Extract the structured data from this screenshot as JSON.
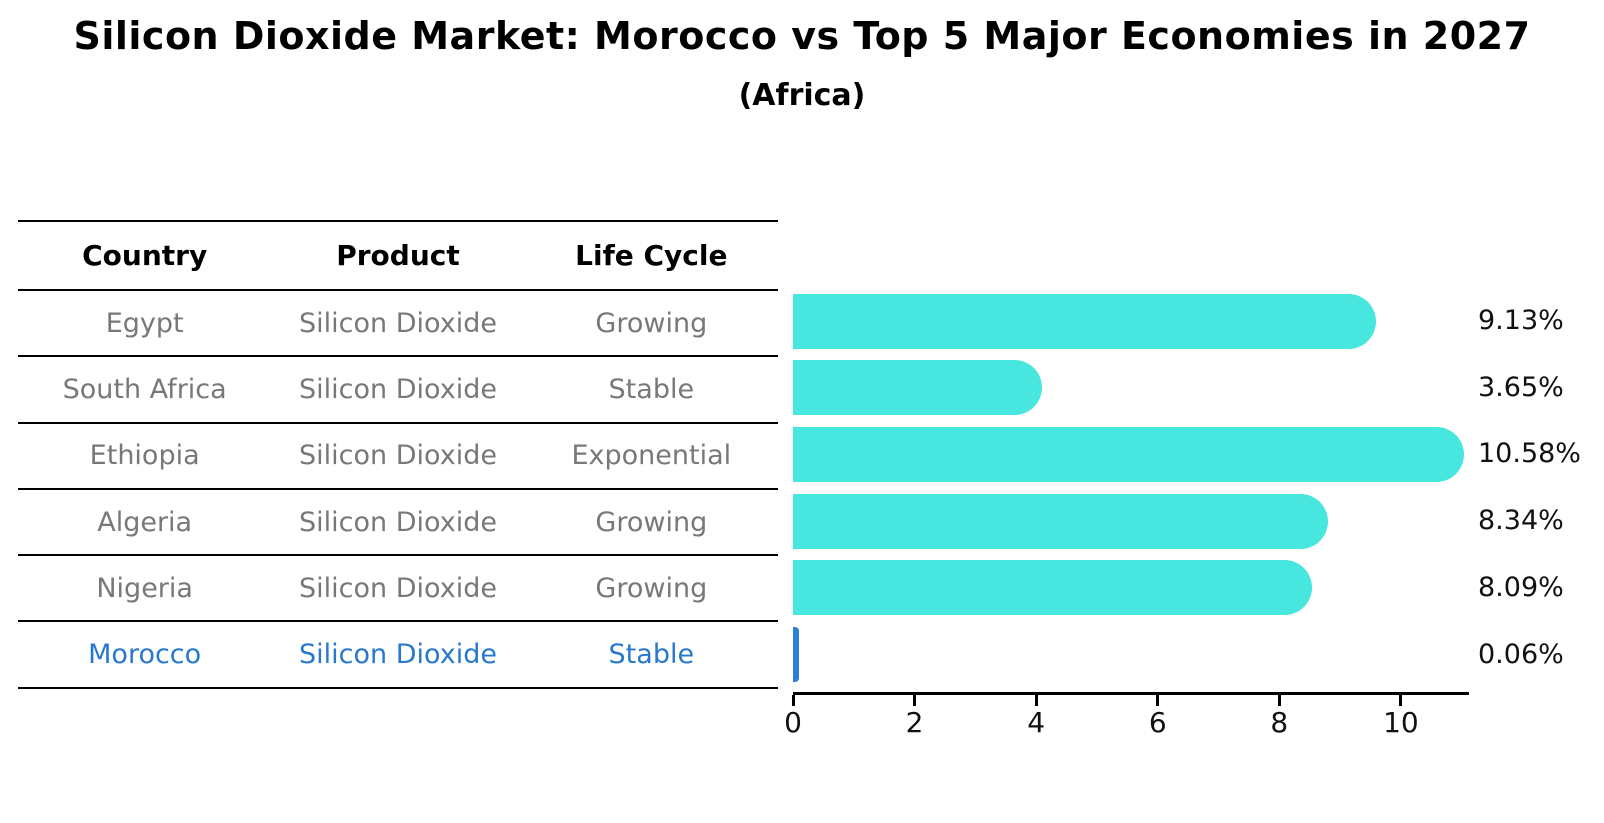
{
  "title": "Silicon Dioxide Market: Morocco vs Top 5 Major Economies in 2027",
  "subtitle": "(Africa)",
  "table": {
    "headers": [
      "Country",
      "Product",
      "Life Cycle"
    ],
    "rows": [
      {
        "country": "Egypt",
        "product": "Silicon Dioxide",
        "life_cycle": "Growing",
        "highlighted": false
      },
      {
        "country": "South Africa",
        "product": "Silicon Dioxide",
        "life_cycle": "Stable",
        "highlighted": false
      },
      {
        "country": "Ethiopia",
        "product": "Silicon Dioxide",
        "life_cycle": "Exponential",
        "highlighted": false
      },
      {
        "country": "Algeria",
        "product": "Silicon Dioxide",
        "life_cycle": "Growing",
        "highlighted": false
      },
      {
        "country": "Nigeria",
        "product": "Silicon Dioxide",
        "life_cycle": "Growing",
        "highlighted": false
      },
      {
        "country": "Morocco",
        "product": "Silicon Dioxide",
        "life_cycle": "Stable",
        "highlighted": true
      }
    ]
  },
  "chart_data": {
    "type": "bar",
    "orientation": "horizontal",
    "categories": [
      "Egypt",
      "South Africa",
      "Ethiopia",
      "Algeria",
      "Nigeria",
      "Morocco"
    ],
    "values": [
      9.13,
      3.65,
      10.58,
      8.34,
      8.09,
      0.06
    ],
    "value_labels": [
      "9.13%",
      "3.65%",
      "10.58%",
      "8.34%",
      "8.09%",
      "0.06%"
    ],
    "xticks": [
      0,
      2,
      4,
      6,
      8,
      10
    ],
    "xlim": [
      0,
      11.12
    ],
    "grid": false,
    "legend": "none",
    "highlight_index": 5
  },
  "colors": {
    "bar": "#47e7df",
    "highlight_bar": "#2e7fd6",
    "highlight_text": "#2878cd",
    "table_text": "#787878",
    "axis": "#000000"
  }
}
